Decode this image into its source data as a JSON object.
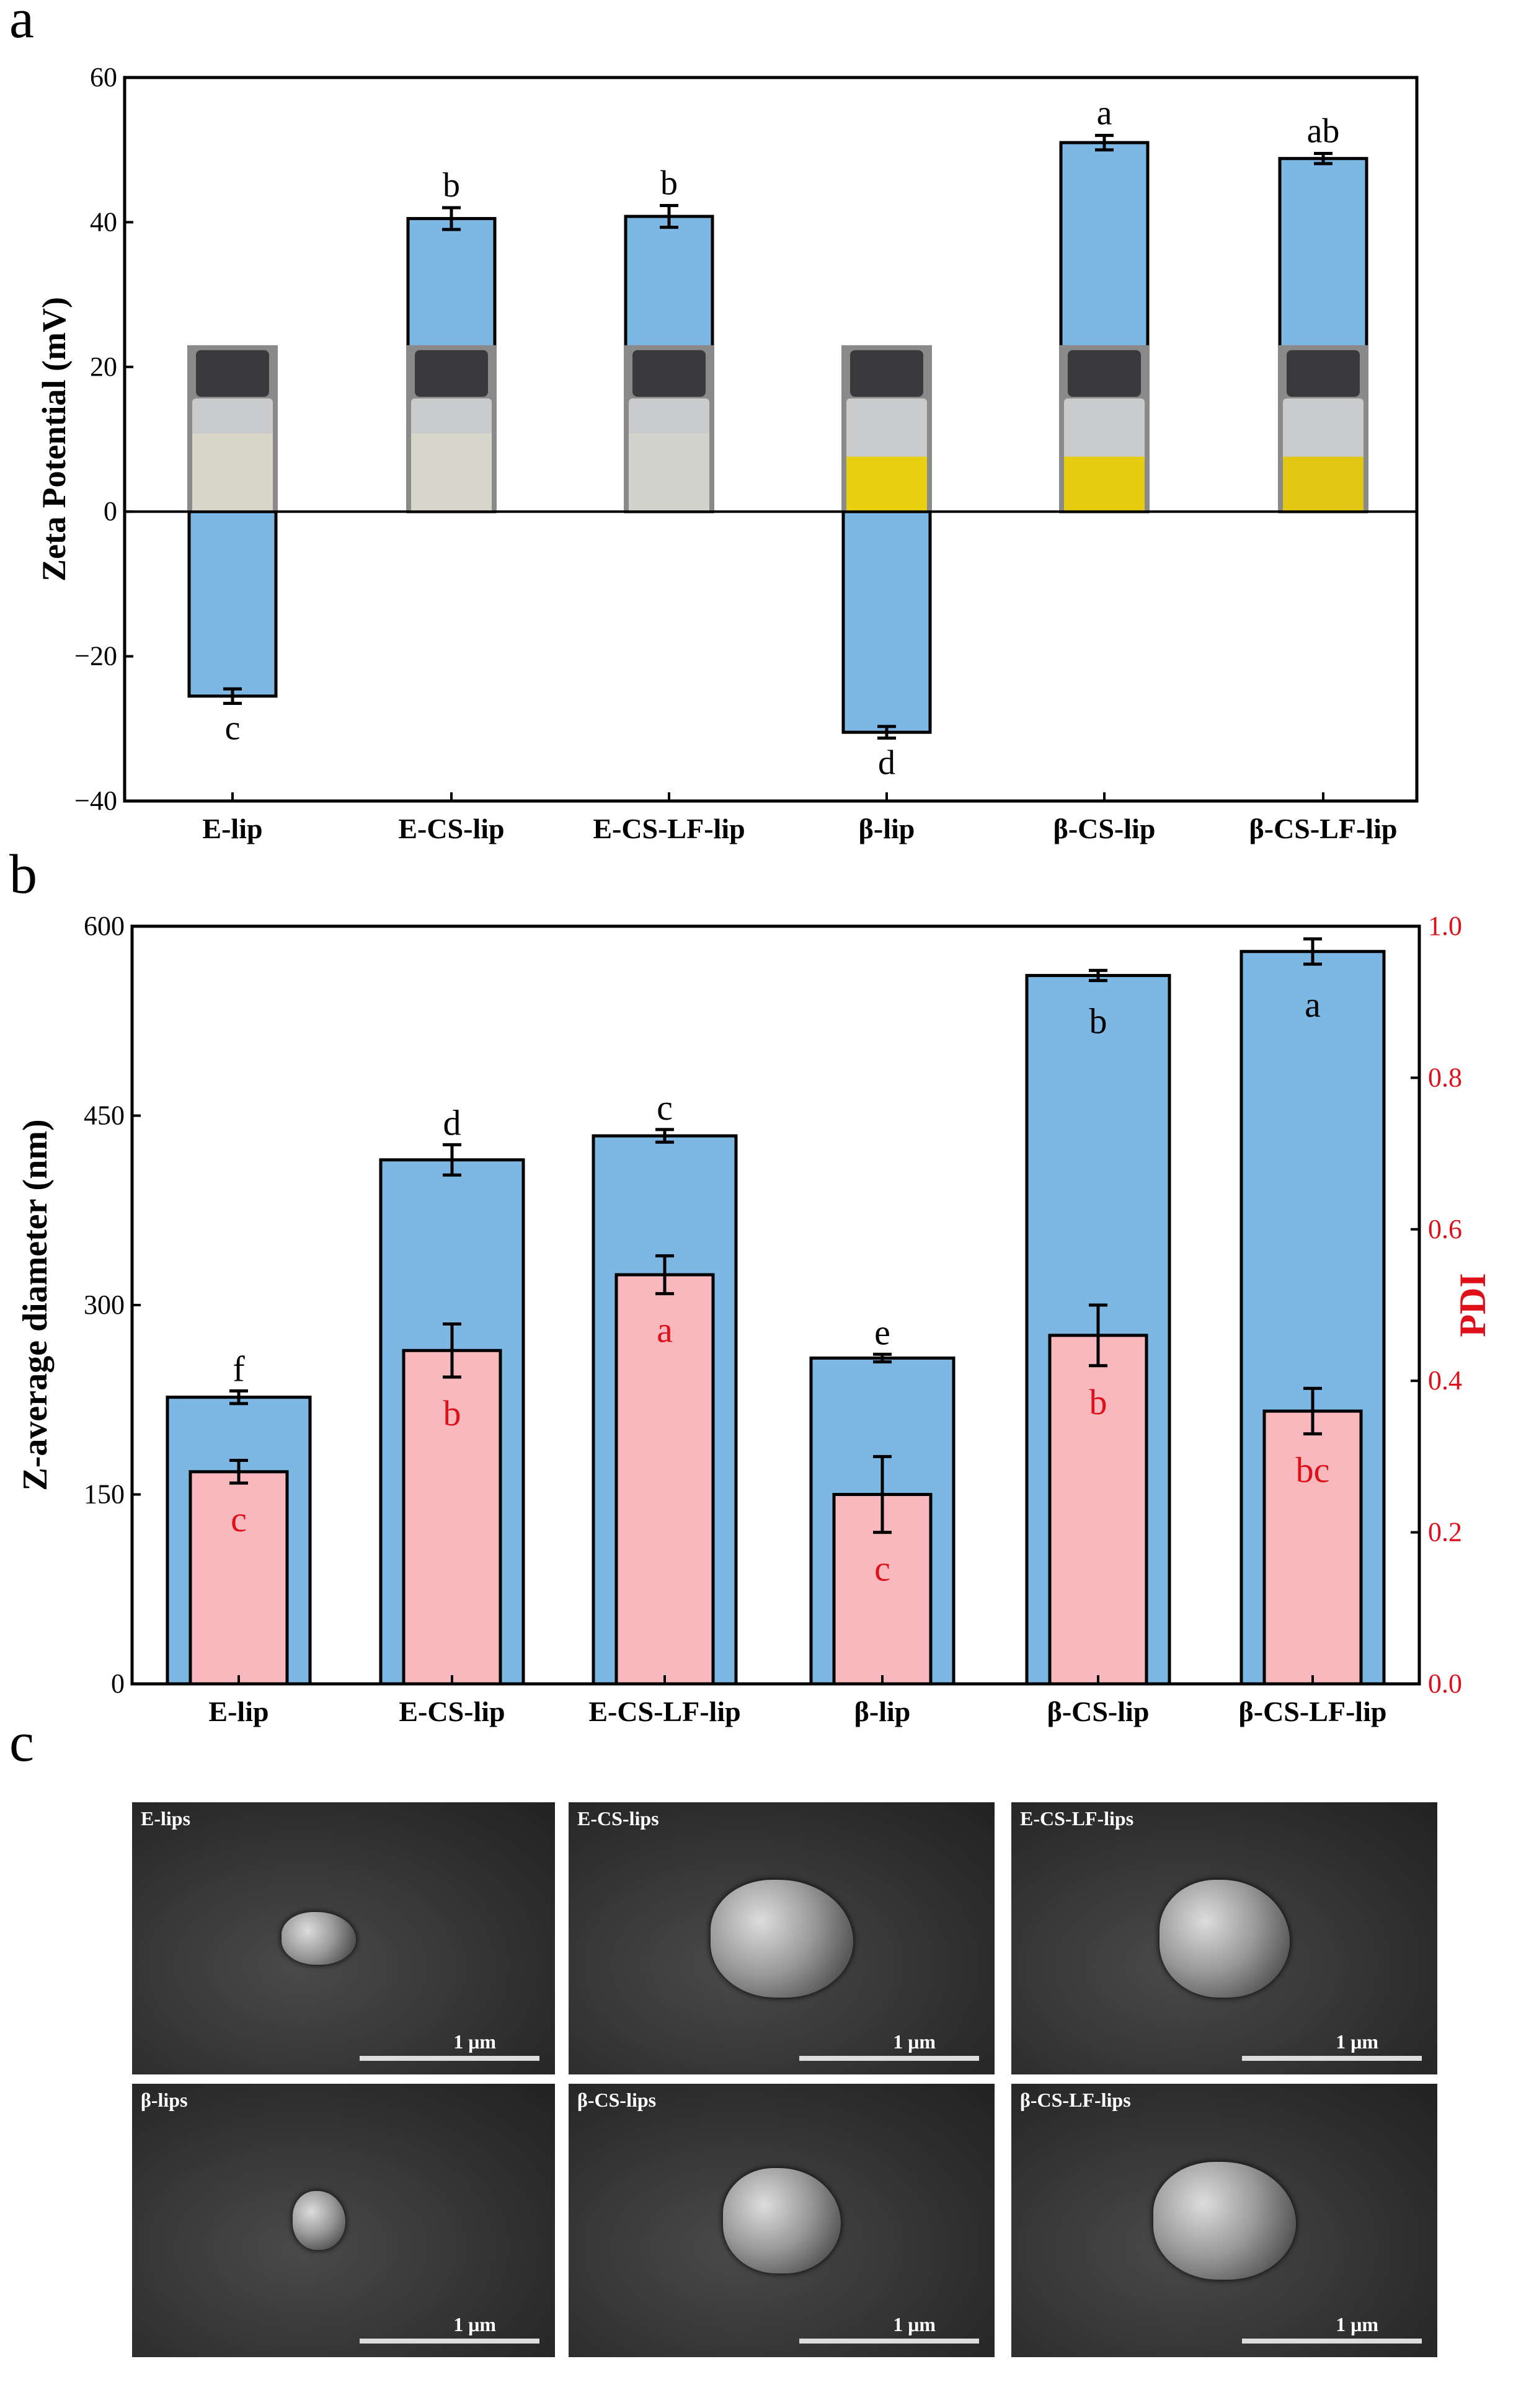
{
  "panel_labels": [
    "a",
    "b",
    "c"
  ],
  "chart_data": [
    {
      "type": "bar",
      "panel": "a",
      "title": "",
      "xlabel": "",
      "ylabel": "Zeta Potential (mV)",
      "categories": [
        "E-lip",
        "E-CS-lip",
        "E-CS-LF-lip",
        "β-lip",
        "β-CS-lip",
        "β-CS-LF-lip"
      ],
      "values": [
        -25.5,
        40.5,
        40.8,
        -30.5,
        51.0,
        48.8
      ],
      "errors": [
        1.0,
        1.5,
        1.5,
        0.8,
        1.0,
        0.7
      ],
      "letters": [
        "c",
        "b",
        "b",
        "d",
        "a",
        "ab"
      ],
      "ylim": [
        -40,
        60
      ],
      "yticks": [
        "-40",
        "-20",
        "0",
        "20",
        "40",
        "60"
      ],
      "vial_colors": [
        "#d8d6c8",
        "#d6d6ca",
        "#d2d4cc",
        "#e8d010",
        "#e6cc10",
        "#e2c614"
      ],
      "bar_color": "#7db8e5"
    },
    {
      "type": "bar",
      "panel": "b",
      "xlabel": "",
      "ylabel": "Z-average diameter (nm)",
      "y2label": "PDI",
      "categories": [
        "E-lip",
        "E-CS-lip",
        "E-CS-LF-lip",
        "β-lip",
        "β-CS-lip",
        "β-CS-LF-lip"
      ],
      "series": [
        {
          "name": "Z-average diameter (nm)",
          "axis": "left",
          "color": "#7db8e5",
          "values": [
            227,
            415,
            434,
            258,
            561,
            580
          ],
          "errors": [
            5,
            12,
            5,
            3,
            4,
            10
          ],
          "letters": [
            "f",
            "d",
            "c",
            "e",
            "b",
            "a"
          ]
        },
        {
          "name": "PDI",
          "axis": "right",
          "color": "#f8b8be",
          "values": [
            0.28,
            0.44,
            0.54,
            0.25,
            0.46,
            0.36
          ],
          "errors": [
            0.015,
            0.035,
            0.025,
            0.05,
            0.04,
            0.03
          ],
          "letters": [
            "c",
            "b",
            "a",
            "c",
            "b",
            "bc"
          ]
        }
      ],
      "ylim": [
        0,
        600
      ],
      "yticks": [
        "0",
        "150",
        "300",
        "450",
        "600"
      ],
      "y2lim": [
        0,
        1.0
      ],
      "y2ticks": [
        "0.0",
        "0.2",
        "0.4",
        "0.6",
        "0.8",
        "1.0"
      ],
      "y2color": "#e0101a"
    }
  ],
  "sem": {
    "scale": "1 μm",
    "images": [
      "E-lips",
      "E-CS-lips",
      "E-CS-LF-lips",
      "β-lips",
      "β-CS-lips",
      "β-CS-LF-lips"
    ]
  }
}
